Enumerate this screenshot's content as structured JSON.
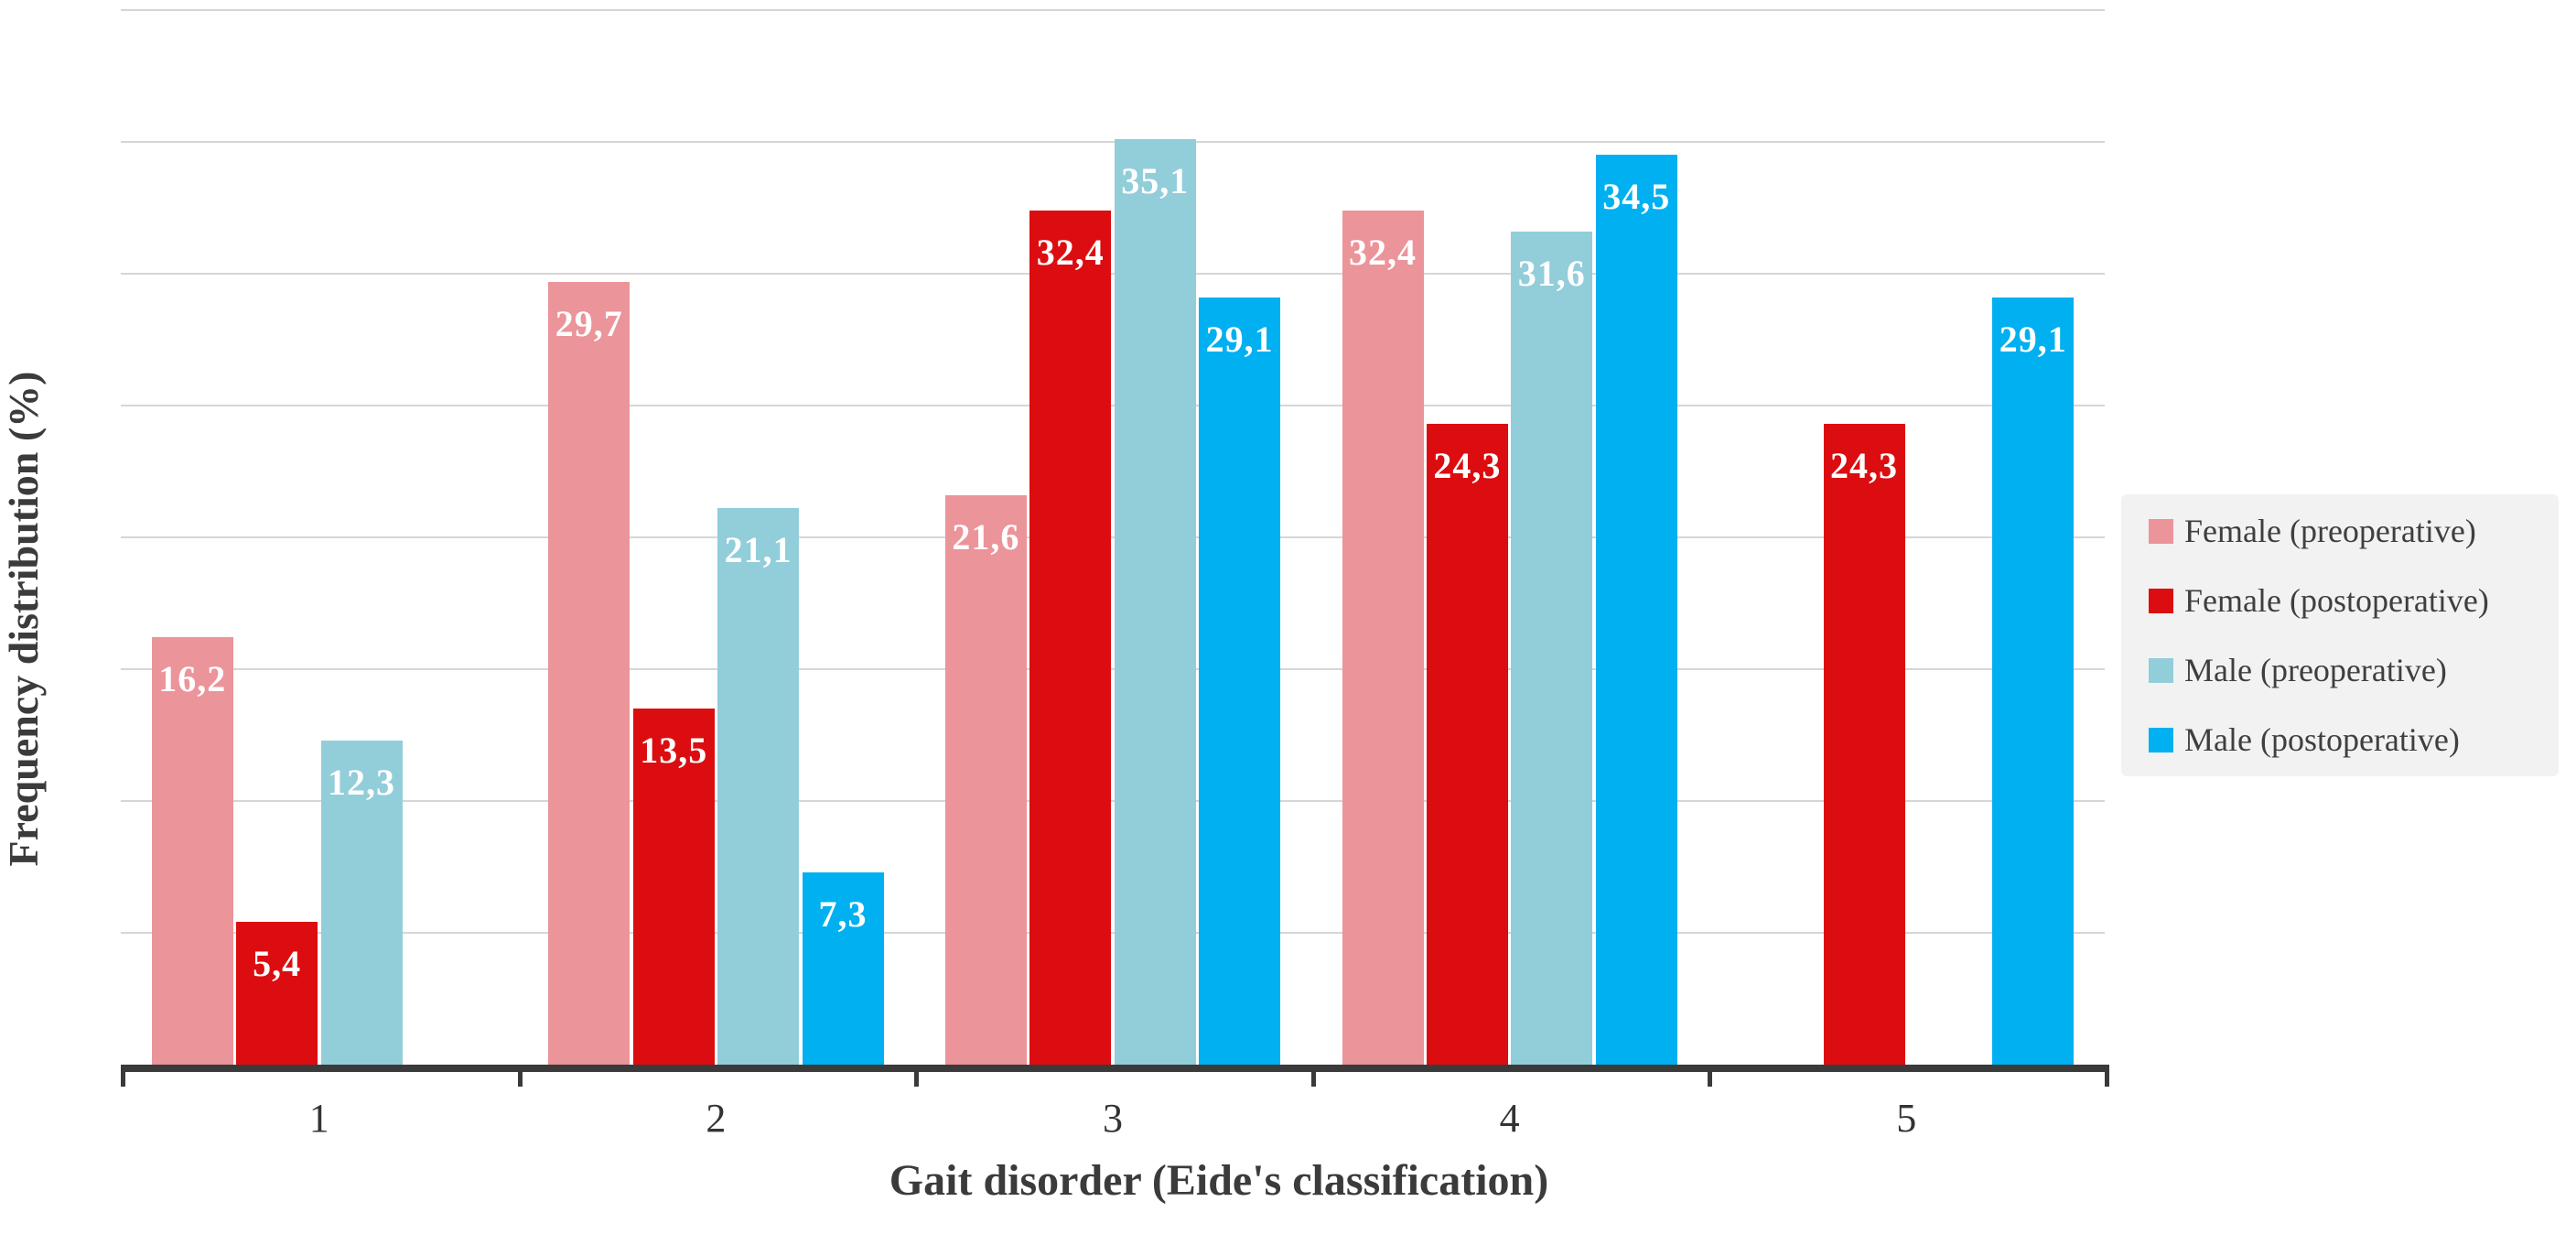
{
  "chart_data": {
    "type": "bar",
    "title": "",
    "xlabel": "Gait disorder (Eide's classification)",
    "ylabel": "Frequency distribution (%)",
    "categories": [
      "1",
      "2",
      "3",
      "4",
      "5"
    ],
    "ylim": [
      0,
      40.3
    ],
    "gridline_interval": 5,
    "gridlines": [
      5,
      10,
      15,
      20,
      25,
      30,
      35,
      40
    ],
    "grid_visible": true,
    "legend_position": "right",
    "decimal_separator": ",",
    "value_label_color": "#ffffff",
    "axis_color": "#3a3a3a",
    "gridline_color": "#d6d6d6",
    "legend_bg_color": "#f2f2f2",
    "series": [
      {
        "name": "Female (preoperative)",
        "color": "#eb949a",
        "values": [
          16.2,
          29.7,
          21.6,
          32.4,
          null
        ],
        "labels": [
          "16,2",
          "29,7",
          "21,6",
          "32,4",
          null
        ]
      },
      {
        "name": "Female (postoperative)",
        "color": "#dc0d10",
        "values": [
          5.4,
          13.5,
          32.4,
          24.3,
          24.3
        ],
        "labels": [
          "5,4",
          "13,5",
          "32,4",
          "24,3",
          "24,3"
        ]
      },
      {
        "name": "Male (preoperative)",
        "color": "#92cdda",
        "values": [
          12.3,
          21.1,
          35.1,
          31.6,
          null
        ],
        "labels": [
          "12,3",
          "21,1",
          "35,1",
          "31,6",
          null
        ]
      },
      {
        "name": "Male (postoperative)",
        "color": "#00b0f0",
        "values": [
          null,
          7.3,
          29.1,
          34.5,
          29.1
        ],
        "labels": [
          null,
          "7,3",
          "29,1",
          "34,5",
          "29,1"
        ]
      }
    ]
  }
}
